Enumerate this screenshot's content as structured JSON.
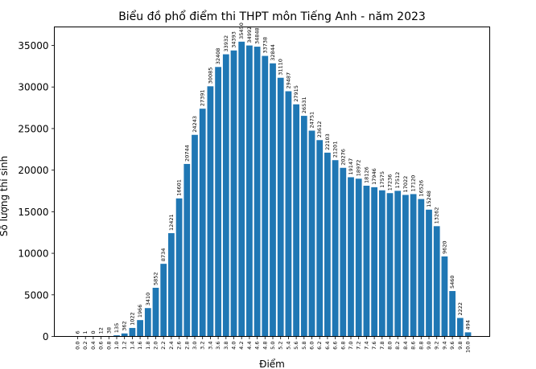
{
  "chart_data": {
    "type": "bar",
    "title": "Biểu đồ phổ điểm thi THPT môn Tiếng Anh - năm 2023",
    "xlabel": "Điểm",
    "ylabel": "Số lượng thí sinh",
    "categories": [
      "0.0",
      "0.2",
      "0.4",
      "0.6",
      "0.8",
      "1.0",
      "1.2",
      "1.4",
      "1.6",
      "1.8",
      "2.0",
      "2.2",
      "2.4",
      "2.6",
      "2.8",
      "3.0",
      "3.2",
      "3.4",
      "3.6",
      "3.8",
      "4.0",
      "4.2",
      "4.4",
      "4.6",
      "4.8",
      "5.0",
      "5.2",
      "5.4",
      "5.6",
      "5.8",
      "6.0",
      "6.2",
      "6.4",
      "6.6",
      "6.8",
      "7.0",
      "7.2",
      "7.4",
      "7.6",
      "7.8",
      "8.0",
      "8.2",
      "8.4",
      "8.6",
      "8.8",
      "9.0",
      "9.2",
      "9.4",
      "9.6",
      "9.8",
      "10.0"
    ],
    "values": [
      6,
      1,
      0,
      12,
      38,
      135,
      362,
      1022,
      1966,
      3410,
      5852,
      8734,
      12421,
      16601,
      20744,
      24243,
      27391,
      30085,
      32408,
      33932,
      34393,
      35450,
      34992,
      34848,
      33738,
      32844,
      31110,
      29487,
      27915,
      26531,
      24751,
      23612,
      22103,
      21201,
      20276,
      19147,
      18972,
      18126,
      17946,
      17575,
      17236,
      17512,
      17022,
      17120,
      16526,
      15248,
      13262,
      9620,
      5460,
      2222,
      494
    ],
    "yticks": [
      0,
      5000,
      10000,
      15000,
      20000,
      25000,
      30000,
      35000
    ],
    "ylim": [
      0,
      37223
    ],
    "grid": false,
    "legend": "none",
    "bar_color": "#1f77b4"
  }
}
